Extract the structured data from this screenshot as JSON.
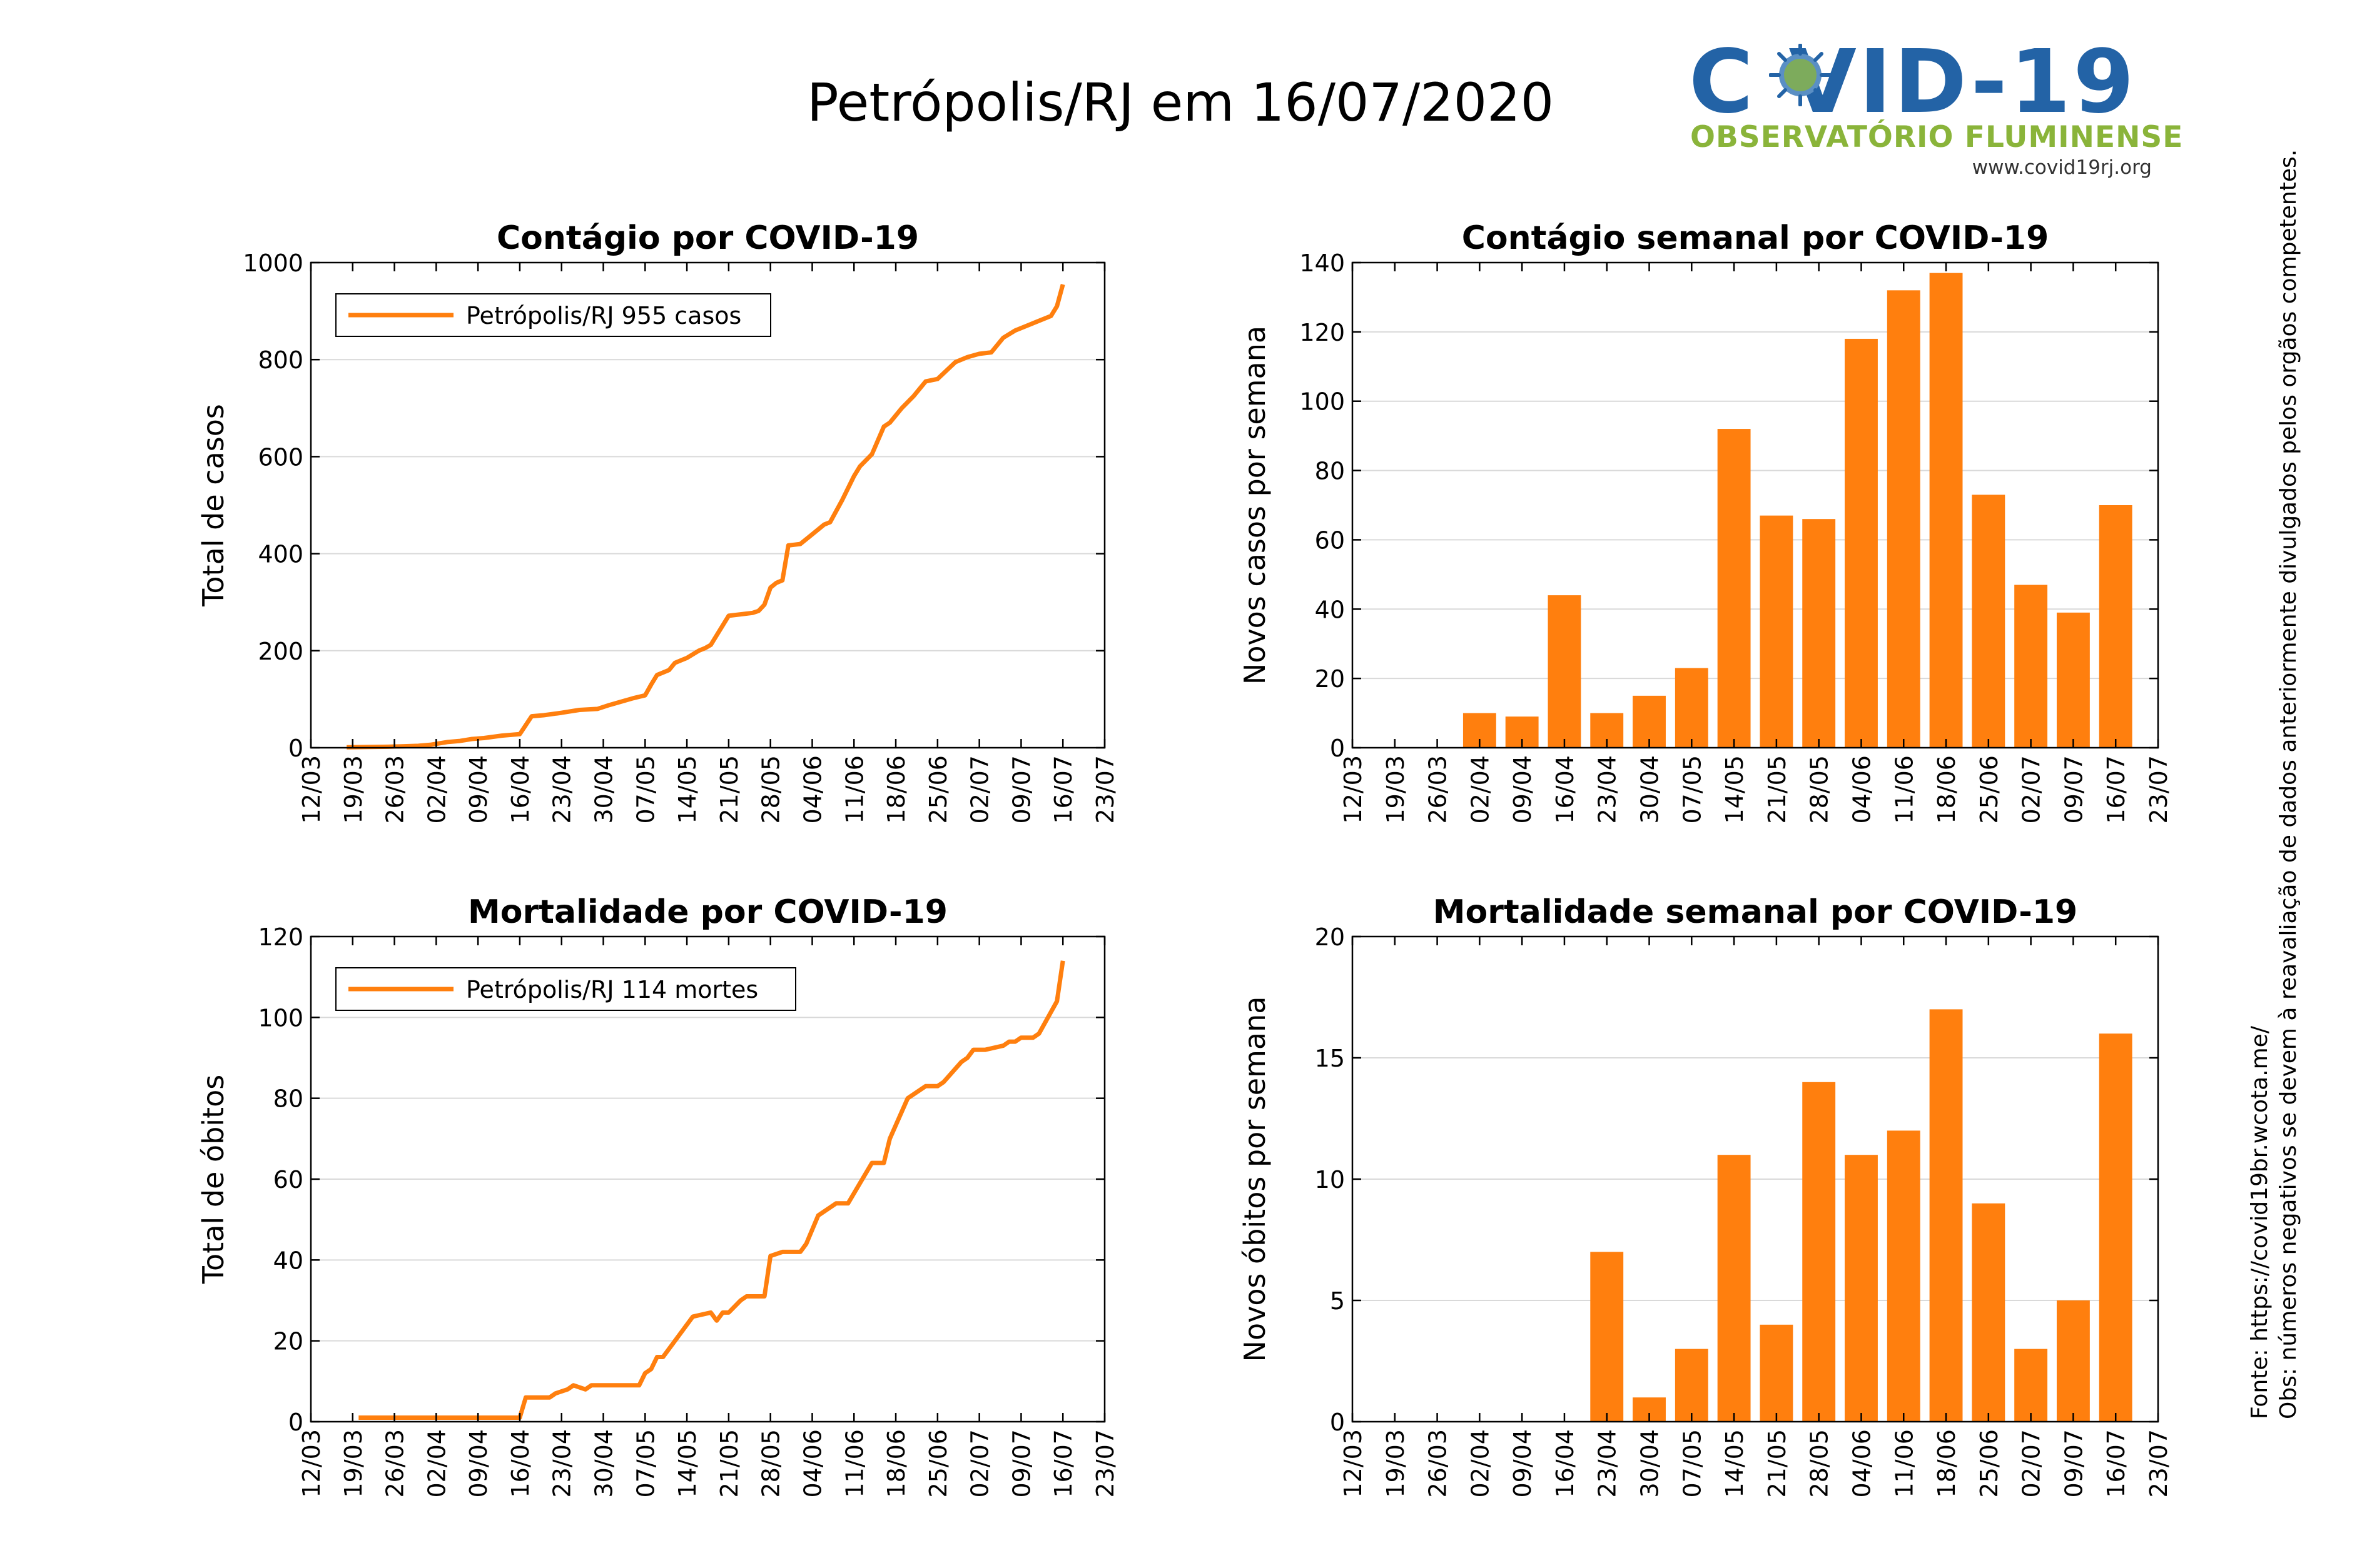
{
  "page": {
    "title": "Petrópolis/RJ em 16/07/2020",
    "logo": {
      "main": "C VID-19",
      "sub": "OBSERVATÓRIO FLUMINENSE",
      "url": "www.covid19rj.org"
    },
    "notes": [
      "Fonte: https://covid19br.wcota.me/",
      "Obs: números negativos se devem à reavaliação de dados anteriormente divulgados pelos orgãos competentes."
    ],
    "colors": {
      "series": "#ff7f0e",
      "grid": "#d9d9d9",
      "logo_blue": "#2363a6",
      "logo_green": "#8ab43a"
    }
  },
  "chart_data": [
    {
      "id": "cases-total",
      "type": "line",
      "title": "Contágio por COVID-19",
      "xlabel": "",
      "ylabel": "Total de casos",
      "xlim": [
        "2020-03-12",
        "2020-07-23"
      ],
      "ylim": [
        0,
        1000
      ],
      "yticks": [
        0,
        200,
        400,
        600,
        800,
        1000
      ],
      "xticks": [
        "12/03",
        "19/03",
        "26/03",
        "02/04",
        "09/04",
        "16/04",
        "23/04",
        "30/04",
        "07/05",
        "14/05",
        "21/05",
        "28/05",
        "04/06",
        "11/06",
        "18/06",
        "25/06",
        "02/07",
        "09/07",
        "16/07",
        "23/07"
      ],
      "grid": true,
      "legend": {
        "position": "top-left",
        "label": "Petrópolis/RJ  955 casos"
      },
      "series": [
        {
          "name": "Petrópolis/RJ",
          "x": [
            "2020-03-18",
            "2020-03-25",
            "2020-03-30",
            "2020-04-01",
            "2020-04-04",
            "2020-04-06",
            "2020-04-08",
            "2020-04-10",
            "2020-04-13",
            "2020-04-15",
            "2020-04-16",
            "2020-04-18",
            "2020-04-20",
            "2020-04-23",
            "2020-04-26",
            "2020-04-29",
            "2020-05-01",
            "2020-05-03",
            "2020-05-05",
            "2020-05-06",
            "2020-05-07",
            "2020-05-08",
            "2020-05-09",
            "2020-05-10",
            "2020-05-11",
            "2020-05-12",
            "2020-05-13",
            "2020-05-14",
            "2020-05-16",
            "2020-05-17",
            "2020-05-18",
            "2020-05-21",
            "2020-05-23",
            "2020-05-25",
            "2020-05-26",
            "2020-05-27",
            "2020-05-28",
            "2020-05-29",
            "2020-05-30",
            "2020-05-31",
            "2020-06-02",
            "2020-06-04",
            "2020-06-06",
            "2020-06-07",
            "2020-06-09",
            "2020-06-11",
            "2020-06-12",
            "2020-06-14",
            "2020-06-16",
            "2020-06-17",
            "2020-06-19",
            "2020-06-21",
            "2020-06-23",
            "2020-06-25",
            "2020-06-28",
            "2020-06-30",
            "2020-07-02",
            "2020-07-04",
            "2020-07-06",
            "2020-07-08",
            "2020-07-10",
            "2020-07-11",
            "2020-07-13",
            "2020-07-14",
            "2020-07-15",
            "2020-07-16"
          ],
          "y": [
            1,
            2,
            4,
            6,
            12,
            14,
            18,
            20,
            25,
            27,
            28,
            65,
            67,
            72,
            78,
            80,
            88,
            95,
            102,
            105,
            108,
            130,
            150,
            155,
            160,
            175,
            180,
            185,
            200,
            205,
            212,
            272,
            275,
            278,
            282,
            295,
            330,
            340,
            345,
            417,
            420,
            440,
            460,
            465,
            510,
            560,
            580,
            605,
            662,
            670,
            700,
            725,
            755,
            760,
            795,
            805,
            812,
            815,
            845,
            860,
            870,
            875,
            885,
            890,
            910,
            955
          ]
        }
      ]
    },
    {
      "id": "cases-weekly",
      "type": "bar",
      "title": "Contágio semanal por COVID-19",
      "xlabel": "",
      "ylabel": "Novos casos por semana",
      "xlim": [
        "2020-03-12",
        "2020-07-23"
      ],
      "ylim": [
        0,
        140
      ],
      "yticks": [
        0,
        20,
        40,
        60,
        80,
        100,
        120,
        140
      ],
      "xticks": [
        "12/03",
        "19/03",
        "26/03",
        "02/04",
        "09/04",
        "16/04",
        "23/04",
        "30/04",
        "07/05",
        "14/05",
        "21/05",
        "28/05",
        "04/06",
        "11/06",
        "18/06",
        "25/06",
        "02/07",
        "09/07",
        "16/07",
        "23/07"
      ],
      "grid": true,
      "categories": [
        "02/04",
        "09/04",
        "16/04",
        "23/04",
        "30/04",
        "07/05",
        "14/05",
        "21/05",
        "28/05",
        "04/06",
        "11/06",
        "18/06",
        "25/06",
        "02/07",
        "09/07",
        "16/07"
      ],
      "values": [
        10,
        9,
        44,
        10,
        15,
        23,
        92,
        67,
        66,
        118,
        132,
        137,
        73,
        47,
        39,
        70
      ]
    },
    {
      "id": "deaths-total",
      "type": "line",
      "title": "Mortalidade por COVID-19",
      "xlabel": "",
      "ylabel": "Total de óbitos",
      "xlim": [
        "2020-03-12",
        "2020-07-23"
      ],
      "ylim": [
        0,
        120
      ],
      "yticks": [
        0,
        20,
        40,
        60,
        80,
        100,
        120
      ],
      "xticks": [
        "12/03",
        "19/03",
        "26/03",
        "02/04",
        "09/04",
        "16/04",
        "23/04",
        "30/04",
        "07/05",
        "14/05",
        "21/05",
        "28/05",
        "04/06",
        "11/06",
        "18/06",
        "25/06",
        "02/07",
        "09/07",
        "16/07",
        "23/07"
      ],
      "grid": true,
      "legend": {
        "position": "top-left",
        "label": "Petrópolis/RJ  114 mortes"
      },
      "series": [
        {
          "name": "Petrópolis/RJ",
          "x": [
            "2020-03-20",
            "2020-04-16",
            "2020-04-17",
            "2020-04-21",
            "2020-04-22",
            "2020-04-24",
            "2020-04-25",
            "2020-04-27",
            "2020-04-28",
            "2020-05-06",
            "2020-05-07",
            "2020-05-08",
            "2020-05-09",
            "2020-05-10",
            "2020-05-12",
            "2020-05-14",
            "2020-05-15",
            "2020-05-18",
            "2020-05-19",
            "2020-05-20",
            "2020-05-21",
            "2020-05-23",
            "2020-05-24",
            "2020-05-27",
            "2020-05-28",
            "2020-05-30",
            "2020-06-02",
            "2020-06-03",
            "2020-06-05",
            "2020-06-08",
            "2020-06-09",
            "2020-06-10",
            "2020-06-14",
            "2020-06-16",
            "2020-06-17",
            "2020-06-20",
            "2020-06-23",
            "2020-06-24",
            "2020-06-25",
            "2020-06-26",
            "2020-06-29",
            "2020-06-30",
            "2020-07-01",
            "2020-07-03",
            "2020-07-06",
            "2020-07-07",
            "2020-07-08",
            "2020-07-09",
            "2020-07-11",
            "2020-07-12",
            "2020-07-15",
            "2020-07-16"
          ],
          "y": [
            1,
            1,
            6,
            6,
            7,
            8,
            9,
            8,
            9,
            9,
            12,
            13,
            16,
            16,
            20,
            24,
            26,
            27,
            25,
            27,
            27,
            30,
            31,
            31,
            41,
            42,
            42,
            44,
            51,
            54,
            54,
            54,
            64,
            64,
            70,
            80,
            83,
            83,
            83,
            84,
            89,
            90,
            92,
            92,
            93,
            94,
            94,
            95,
            95,
            96,
            104,
            114
          ]
        }
      ]
    },
    {
      "id": "deaths-weekly",
      "type": "bar",
      "title": "Mortalidade semanal por COVID-19",
      "xlabel": "",
      "ylabel": "Novos óbitos por semana",
      "xlim": [
        "2020-03-12",
        "2020-07-23"
      ],
      "ylim": [
        0,
        20
      ],
      "yticks": [
        0,
        5,
        10,
        15,
        20
      ],
      "xticks": [
        "12/03",
        "19/03",
        "26/03",
        "02/04",
        "09/04",
        "16/04",
        "23/04",
        "30/04",
        "07/05",
        "14/05",
        "21/05",
        "28/05",
        "04/06",
        "11/06",
        "18/06",
        "25/06",
        "02/07",
        "09/07",
        "16/07",
        "23/07"
      ],
      "grid": true,
      "categories": [
        "23/04",
        "30/04",
        "07/05",
        "14/05",
        "21/05",
        "28/05",
        "04/06",
        "11/06",
        "18/06",
        "25/06",
        "02/07",
        "09/07",
        "16/07"
      ],
      "values": [
        7,
        1,
        3,
        11,
        4,
        14,
        11,
        12,
        17,
        9,
        3,
        5,
        16
      ]
    }
  ]
}
